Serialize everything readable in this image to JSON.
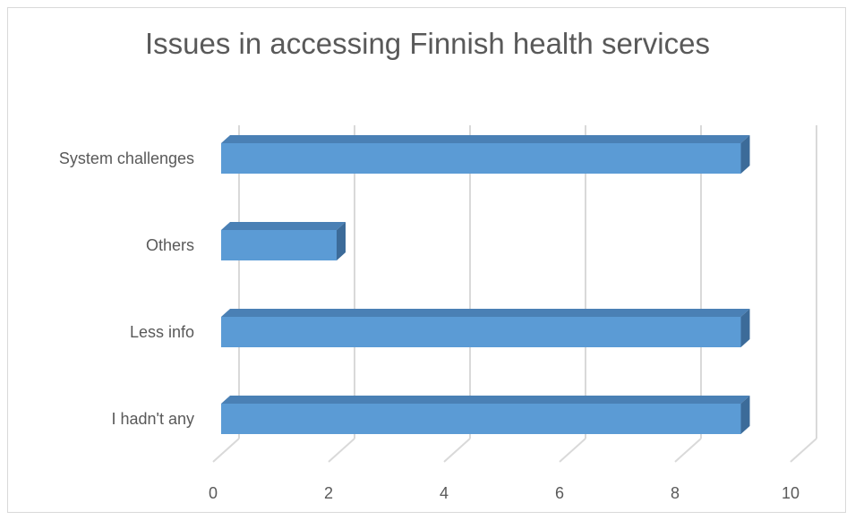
{
  "chart_data": {
    "type": "bar",
    "orientation": "horizontal",
    "style": "3d",
    "title": "Issues in accessing Finnish health services",
    "categories": [
      "System challenges",
      "Others",
      "Less info",
      "I hadn't any"
    ],
    "values": [
      9,
      2,
      9,
      9
    ],
    "xlim": [
      0,
      10
    ],
    "xticks": [
      0,
      2,
      4,
      6,
      8,
      10
    ],
    "grid": true,
    "legend": "none",
    "colors": {
      "bar": "#5b9bd5",
      "bar_top": "#4a80b5",
      "bar_side": "#3c6b99",
      "grid": "#d9d9d9",
      "text": "#595959"
    }
  }
}
